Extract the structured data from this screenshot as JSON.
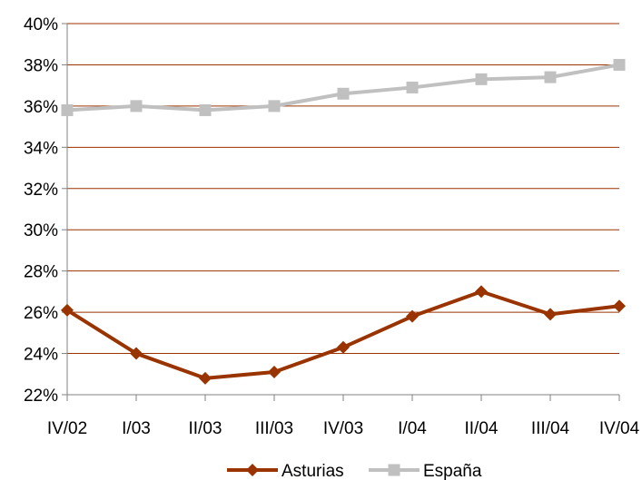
{
  "chart_data": {
    "type": "line",
    "categories": [
      "IV/02",
      "I/03",
      "II/03",
      "III/03",
      "IV/03",
      "I/04",
      "II/04",
      "III/04",
      "IV/04"
    ],
    "series": [
      {
        "name": "Asturias",
        "values": [
          26.1,
          24.0,
          22.8,
          23.1,
          24.3,
          25.8,
          27.0,
          25.9,
          26.3
        ],
        "color": "#993300",
        "marker": "diamond"
      },
      {
        "name": "España",
        "values": [
          35.8,
          36.0,
          35.8,
          36.0,
          36.6,
          36.9,
          37.3,
          37.4,
          38.0
        ],
        "color": "#c0c0c0",
        "marker": "square"
      }
    ],
    "ylim": [
      22,
      40
    ],
    "yticks": [
      "22%",
      "24%",
      "26%",
      "28%",
      "30%",
      "32%",
      "34%",
      "36%",
      "38%",
      "40%"
    ],
    "ytick_values": [
      22,
      24,
      26,
      28,
      30,
      32,
      34,
      36,
      38,
      40
    ],
    "gridline_color": "#993300",
    "grid": true,
    "legend_position": "bottom",
    "title": "",
    "xlabel": "",
    "ylabel": ""
  }
}
